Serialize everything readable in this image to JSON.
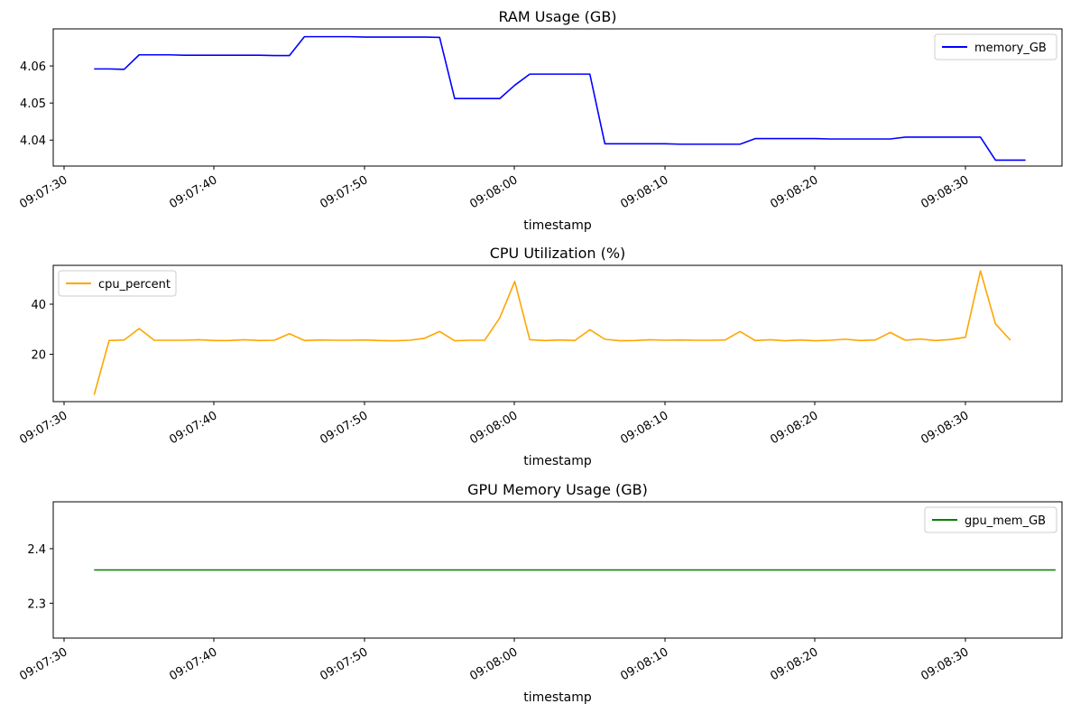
{
  "chart_data": [
    {
      "type": "line",
      "title": "RAM Usage (GB)",
      "xlabel": "timestamp",
      "ylabel": "",
      "x_tick_labels": [
        "09:07:30",
        "09:07:40",
        "09:07:50",
        "09:08:00",
        "09:08:10",
        "09:08:20",
        "09:08:30"
      ],
      "y_ticks": [
        4.04,
        4.05,
        4.06
      ],
      "y_tick_labels": [
        "4.04",
        "4.05",
        "4.06"
      ],
      "ylim": [
        4.033,
        4.07
      ],
      "x_start": "09:07:32",
      "x_step_seconds": 1,
      "legend": "top-right",
      "series": [
        {
          "name": "memory_GB",
          "color": "#0000ff",
          "values": [
            4.0592,
            4.0592,
            4.0591,
            4.063,
            4.063,
            4.063,
            4.0629,
            4.0629,
            4.0629,
            4.0629,
            4.0629,
            4.0629,
            4.0628,
            4.0628,
            4.0679,
            4.0679,
            4.0679,
            4.0679,
            4.0678,
            4.0678,
            4.0678,
            4.0678,
            4.0678,
            4.0677,
            4.0512,
            4.0512,
            4.0512,
            4.0512,
            4.0548,
            4.0578,
            4.0578,
            4.0578,
            4.0578,
            4.0578,
            4.039,
            4.039,
            4.039,
            4.039,
            4.039,
            4.0389,
            4.0389,
            4.0389,
            4.0389,
            4.0389,
            4.0404,
            4.0404,
            4.0404,
            4.0404,
            4.0404,
            4.0403,
            4.0403,
            4.0403,
            4.0403,
            4.0403,
            4.0408,
            4.0408,
            4.0408,
            4.0408,
            4.0408,
            4.0408,
            4.0346,
            4.0346,
            4.0346
          ]
        }
      ]
    },
    {
      "type": "line",
      "title": "CPU Utilization (%)",
      "xlabel": "timestamp",
      "ylabel": "",
      "x_tick_labels": [
        "09:07:30",
        "09:07:40",
        "09:07:50",
        "09:08:00",
        "09:08:10",
        "09:08:20",
        "09:08:30"
      ],
      "y_ticks": [
        20,
        40
      ],
      "y_tick_labels": [
        "20",
        "40"
      ],
      "ylim": [
        1.1,
        55.5
      ],
      "x_start": "09:07:32",
      "x_step_seconds": 1,
      "legend": "top-left",
      "series": [
        {
          "name": "cpu_percent",
          "color": "#ffa500",
          "values": [
            3.8,
            25.5,
            25.7,
            30.3,
            25.6,
            25.6,
            25.6,
            25.8,
            25.5,
            25.5,
            25.8,
            25.5,
            25.6,
            28.2,
            25.5,
            25.7,
            25.6,
            25.6,
            25.7,
            25.5,
            25.4,
            25.6,
            26.4,
            29.1,
            25.4,
            25.6,
            25.6,
            34.5,
            49.1,
            25.8,
            25.5,
            25.7,
            25.5,
            29.8,
            26.0,
            25.4,
            25.5,
            25.8,
            25.6,
            25.7,
            25.6,
            25.6,
            25.7,
            29.1,
            25.5,
            25.8,
            25.4,
            25.7,
            25.4,
            25.6,
            26.0,
            25.5,
            25.7,
            28.7,
            25.6,
            26.1,
            25.5,
            25.9,
            26.8,
            53.3,
            32.1,
            25.6
          ]
        }
      ]
    },
    {
      "type": "line",
      "title": "GPU Memory Usage (GB)",
      "xlabel": "timestamp",
      "ylabel": "",
      "x_tick_labels": [
        "09:07:30",
        "09:07:40",
        "09:07:50",
        "09:08:00",
        "09:08:10",
        "09:08:20",
        "09:08:30"
      ],
      "y_ticks": [
        2.3,
        2.4
      ],
      "y_tick_labels": [
        "2.3",
        "2.4"
      ],
      "ylim": [
        2.236,
        2.486
      ],
      "x_start": "09:07:32",
      "x_step_seconds": 1,
      "legend": "top-right",
      "series": [
        {
          "name": "gpu_mem_GB",
          "color": "#008000",
          "values": [
            2.361,
            2.361,
            2.361,
            2.361,
            2.361,
            2.361,
            2.361,
            2.361,
            2.361,
            2.361,
            2.361,
            2.361,
            2.361,
            2.361,
            2.361,
            2.361,
            2.361,
            2.361,
            2.361,
            2.361,
            2.361,
            2.361,
            2.361,
            2.361,
            2.361,
            2.361,
            2.361,
            2.361,
            2.361,
            2.361,
            2.361,
            2.361,
            2.361,
            2.361,
            2.361,
            2.361,
            2.361,
            2.361,
            2.361,
            2.361,
            2.361,
            2.361,
            2.361,
            2.361,
            2.361,
            2.361,
            2.361,
            2.361,
            2.361,
            2.361,
            2.361,
            2.361,
            2.361,
            2.361,
            2.361,
            2.361,
            2.361,
            2.361,
            2.361,
            2.361,
            2.361,
            2.361,
            2.361,
            2.361,
            2.361
          ]
        }
      ]
    }
  ]
}
